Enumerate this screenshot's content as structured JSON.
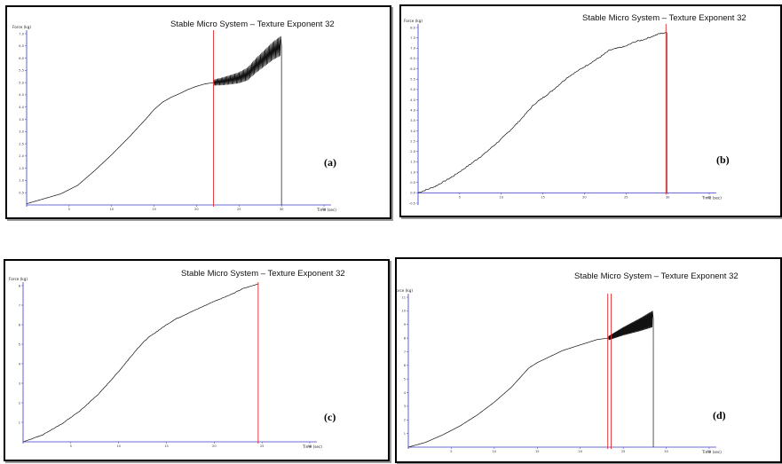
{
  "colors": {
    "axis": "#3a3ac8",
    "cursor": "#e0282a",
    "curve": "#111111",
    "frame": "#000000"
  },
  "chart_data": [
    {
      "type": "line",
      "panel_label": "(a)",
      "title": "Stable Micro System – Texture Exponent 32",
      "xlabel": "Time (sec)",
      "ylabel": "Force (kg)",
      "xlim": [
        0,
        35
      ],
      "ylim": [
        0,
        7.0
      ],
      "xticks": [
        "5",
        "10",
        "15",
        "20",
        "25",
        "30",
        "35"
      ],
      "yticks": [
        "0.5",
        "1.0",
        "1.5",
        "2.0",
        "2.5",
        "3.0",
        "3.5",
        "4.0",
        "4.5",
        "5.0",
        "5.5",
        "6.0",
        "6.5",
        "7.0"
      ],
      "cursor_x": [
        22.0
      ],
      "x": [
        0,
        2,
        4,
        6,
        8,
        10,
        12,
        14,
        15,
        16,
        17,
        18,
        19,
        20,
        21,
        22,
        23,
        24,
        25,
        26,
        27,
        28,
        29,
        29.9
      ],
      "y": [
        0.05,
        0.25,
        0.45,
        0.8,
        1.4,
        2.05,
        2.75,
        3.5,
        3.9,
        4.2,
        4.4,
        4.55,
        4.72,
        4.85,
        4.95,
        5.0,
        5.05,
        5.12,
        5.2,
        5.35,
        5.7,
        6.0,
        6.3,
        6.5
      ],
      "oscillation": {
        "start": 22.0,
        "end": 29.9,
        "amp_start": 0.12,
        "amp_end": 0.4
      },
      "drop_x": 30.0
    },
    {
      "type": "line",
      "panel_label": "(b)",
      "title": "Stable Micro System – Texture Exponent 32",
      "xlabel": "Time (sec)",
      "ylabel": "Force (kg)",
      "xlim": [
        0,
        35
      ],
      "ylim": [
        -0.5,
        8.0
      ],
      "xticks": [
        "5",
        "10",
        "15",
        "20",
        "25",
        "30",
        "35"
      ],
      "yticks": [
        "-0.5",
        "0.0",
        "0.5",
        "1.0",
        "1.5",
        "2.0",
        "2.5",
        "3.0",
        "3.5",
        "4.0",
        "4.5",
        "5.0",
        "5.5",
        "6.0",
        "6.5",
        "7.0",
        "7.5",
        "8.0"
      ],
      "cursor_x": [
        29.8
      ],
      "x": [
        0,
        2,
        4,
        6,
        8,
        10,
        12,
        14,
        16,
        18,
        20,
        22,
        23,
        24,
        25,
        26,
        27,
        28,
        29,
        29.8
      ],
      "y": [
        0.0,
        0.3,
        0.75,
        1.3,
        1.9,
        2.6,
        3.4,
        4.3,
        4.9,
        5.6,
        6.1,
        6.6,
        6.9,
        7.0,
        7.1,
        7.3,
        7.4,
        7.55,
        7.7,
        7.75
      ],
      "jitter": 0.06,
      "drop_x": 29.9
    },
    {
      "type": "line",
      "panel_label": "(c)",
      "title": "Stable Micro System – Texture Exponent 32",
      "xlabel": "Time (sec)",
      "ylabel": "Force (kg)",
      "xlim": [
        0,
        30
      ],
      "ylim": [
        0,
        8.0
      ],
      "xticks": [
        "5",
        "10",
        "15",
        "20",
        "25",
        "30"
      ],
      "yticks": [
        "1",
        "2",
        "3",
        "4",
        "5",
        "6",
        "7",
        "8"
      ],
      "cursor_x": [
        24.6
      ],
      "x": [
        0,
        2,
        4,
        6,
        8,
        10,
        11,
        12,
        13,
        14,
        15,
        16,
        18,
        20,
        22,
        23,
        24,
        24.6
      ],
      "y": [
        0.0,
        0.35,
        0.9,
        1.6,
        2.5,
        3.6,
        4.2,
        4.8,
        5.3,
        5.65,
        6.0,
        6.3,
        6.75,
        7.2,
        7.6,
        7.85,
        8.0,
        8.1
      ],
      "jitter": 0.03,
      "drop_x": null
    },
    {
      "type": "line",
      "panel_label": "(d)",
      "title": "Stable Micro System – Texture Exponent 32",
      "xlabel": "Time (sec)",
      "ylabel": "Force (kg)",
      "xlim": [
        0,
        35
      ],
      "ylim": [
        0,
        11
      ],
      "xticks": [
        "5",
        "10",
        "15",
        "20",
        "25",
        "30",
        "35"
      ],
      "yticks": [
        "1",
        "2",
        "3",
        "4",
        "5",
        "6",
        "7",
        "8",
        "9",
        "10",
        "11"
      ],
      "cursor_x": [
        23.2,
        23.6
      ],
      "x": [
        0,
        2,
        4,
        6,
        8,
        10,
        12,
        14,
        15,
        16,
        18,
        20,
        22,
        23.3,
        25,
        27,
        28.4
      ],
      "y": [
        0.0,
        0.35,
        0.9,
        1.55,
        2.35,
        3.3,
        4.4,
        5.8,
        6.2,
        6.5,
        7.1,
        7.5,
        7.9,
        8.0,
        8.5,
        9.0,
        9.4
      ],
      "oscillation": {
        "start": 23.3,
        "end": 28.4,
        "amp_start": 0.15,
        "amp_end": 0.6
      },
      "drop_x": 28.5
    }
  ]
}
